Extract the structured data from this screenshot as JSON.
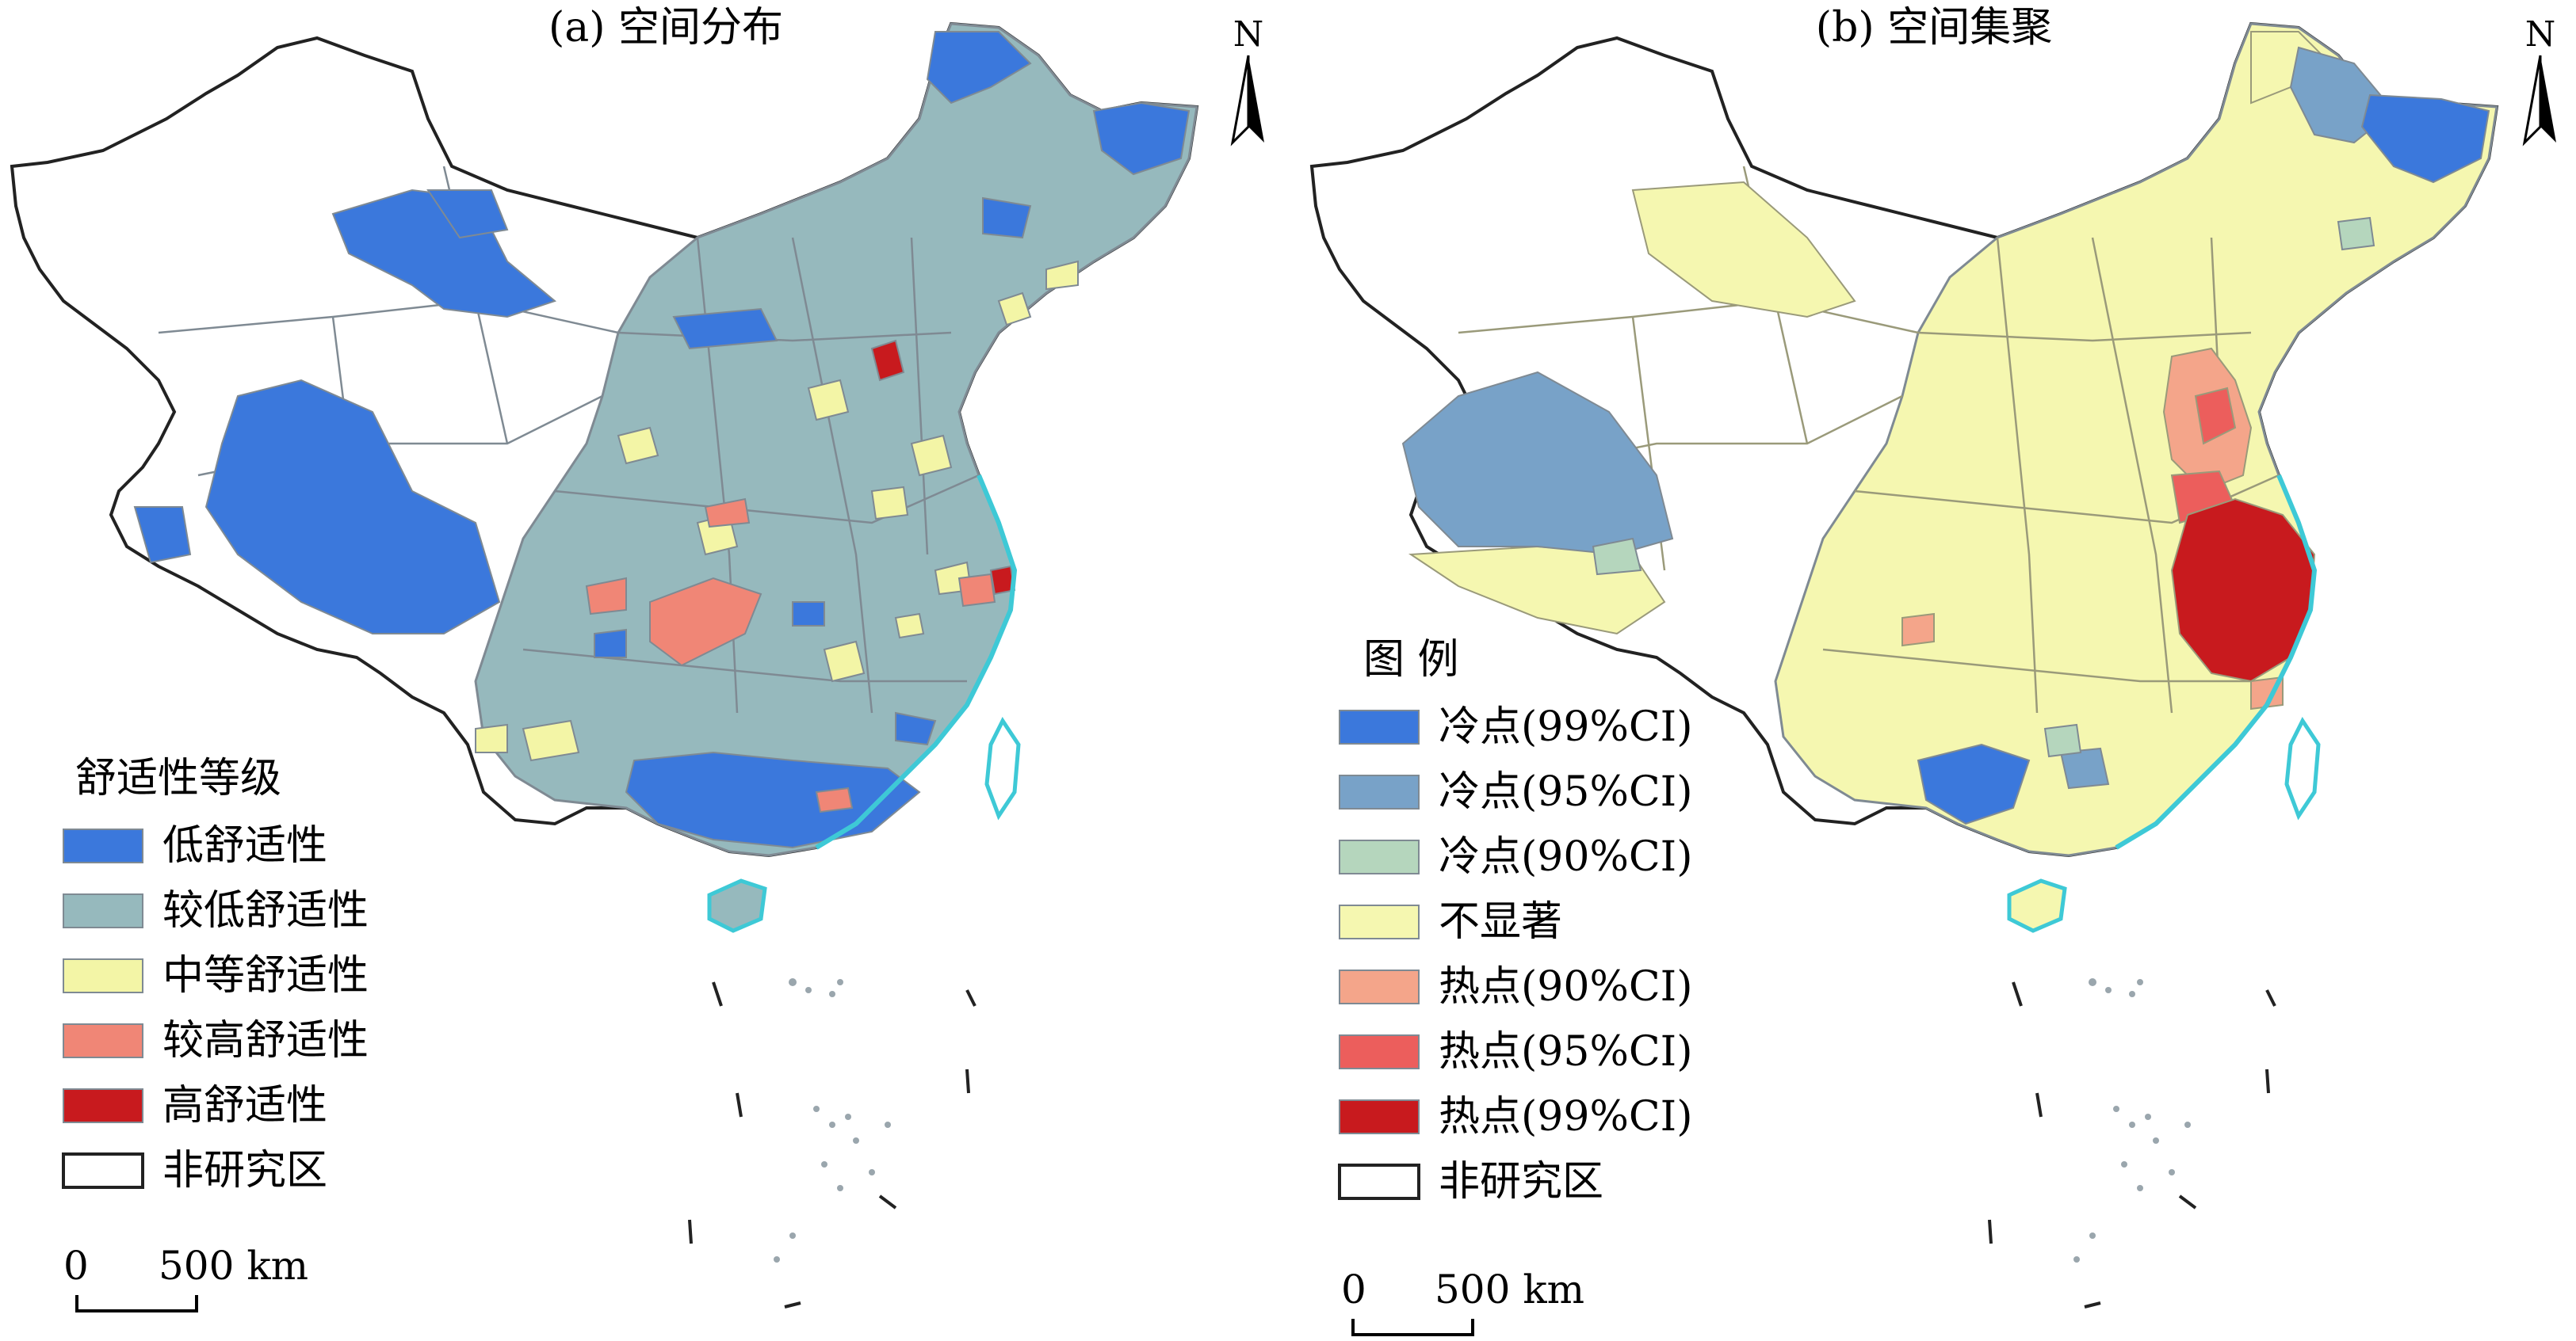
{
  "panel_a": {
    "title": "(a) 空间分布",
    "legend_title": "舒适性等级",
    "legend": [
      {
        "label": "低舒适性",
        "color": "#3b78dc"
      },
      {
        "label": "较低舒适性",
        "color": "#96b9bd"
      },
      {
        "label": "中等舒适性",
        "color": "#f3f5a6"
      },
      {
        "label": "较高舒适性",
        "color": "#f08676"
      },
      {
        "label": "高舒适性",
        "color": "#c81a1e"
      },
      {
        "label": "非研究区",
        "color": "#ffffff"
      }
    ],
    "scale_zero": "0",
    "scale_label": "500 km",
    "north": "N"
  },
  "panel_b": {
    "title": "(b) 空间集聚",
    "legend_title": "图  例",
    "legend": [
      {
        "label": "冷点(99%CI)",
        "color": "#3b78dc"
      },
      {
        "label": "冷点(95%CI)",
        "color": "#78a2c8"
      },
      {
        "label": "冷点(90%CI)",
        "color": "#b5d6bd"
      },
      {
        "label": "不显著",
        "color": "#f5f7b0"
      },
      {
        "label": "热点(90%CI)",
        "color": "#f4a58a"
      },
      {
        "label": "热点(95%CI)",
        "color": "#ec5e5c"
      },
      {
        "label": "热点(99%CI)",
        "color": "#c81a1e"
      },
      {
        "label": "非研究区",
        "color": "#ffffff"
      }
    ],
    "scale_zero": "0",
    "scale_label": "500 km",
    "north": "N"
  },
  "colors": {
    "boundary": "#7f8a93",
    "outline": "#222222",
    "coast": "#3ec9d6",
    "islands": "#9aa6ad"
  }
}
